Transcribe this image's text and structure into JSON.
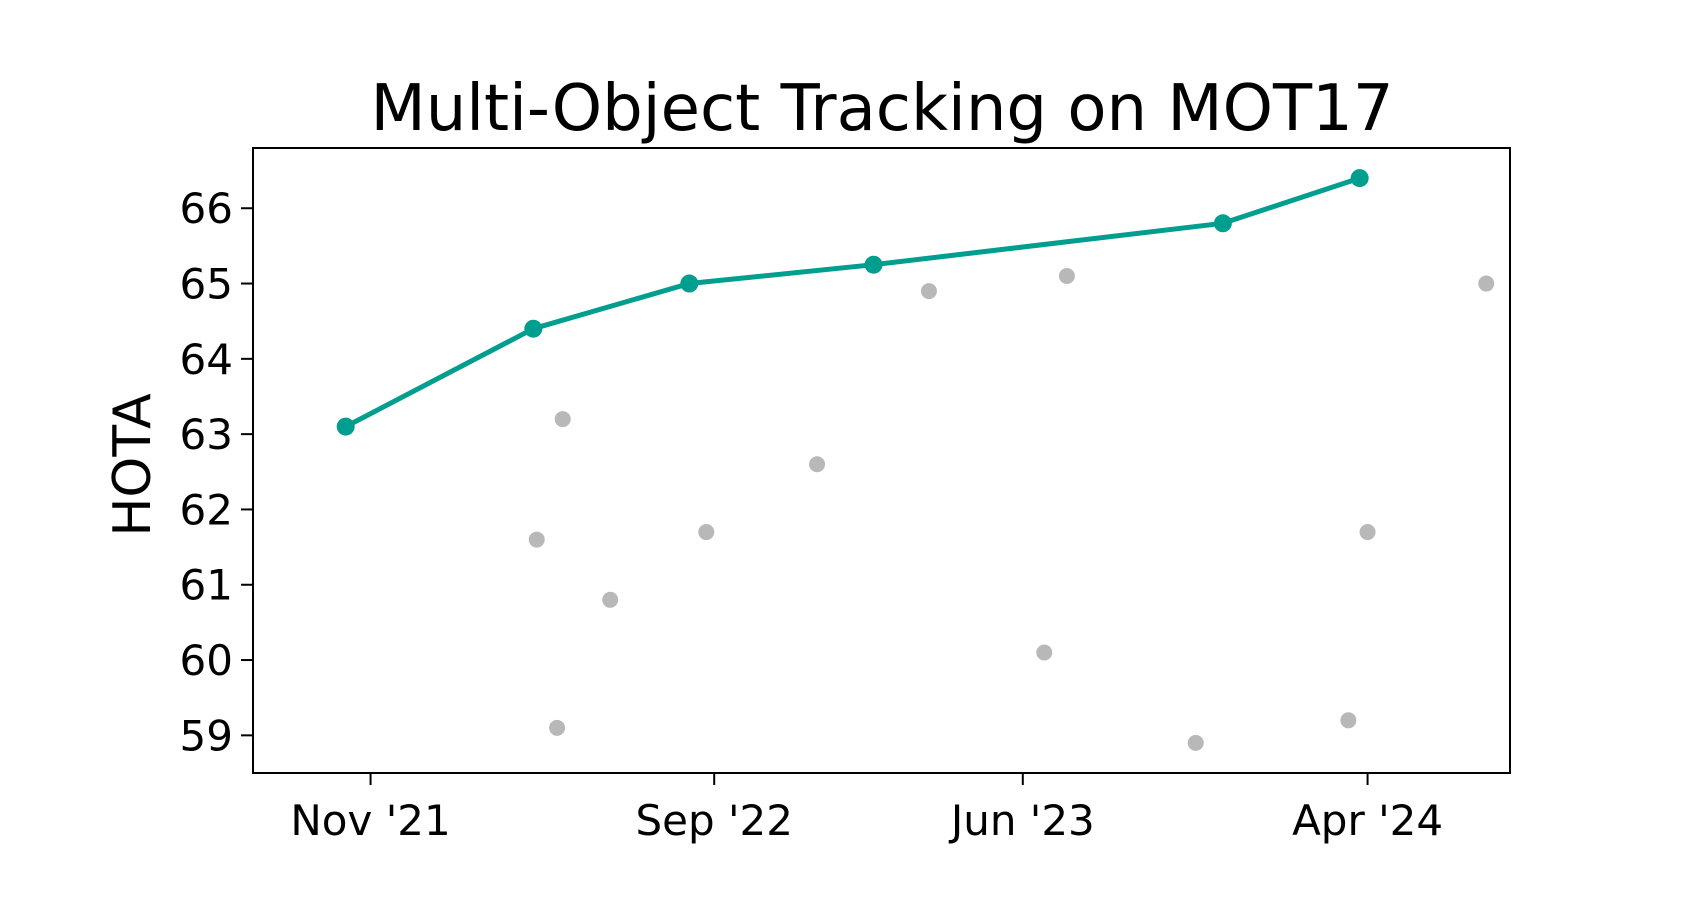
{
  "chart_data": {
    "type": "scatter",
    "title": "Multi-Object Tracking on MOT17",
    "xlabel": "",
    "ylabel": "HOTA",
    "xlim": [
      "2021-07-20",
      "2024-08-05"
    ],
    "ylim": [
      58.5,
      66.8
    ],
    "x_ticks": [
      {
        "date": "2021-11-01",
        "label": "Nov '21"
      },
      {
        "date": "2022-09-01",
        "label": "Sep '22"
      },
      {
        "date": "2023-06-01",
        "label": "Jun '23"
      },
      {
        "date": "2024-04-01",
        "label": "Apr '24"
      }
    ],
    "y_ticks": [
      59,
      60,
      61,
      62,
      63,
      64,
      65,
      66
    ],
    "grid": false,
    "colors": {
      "frontier": "#009e8f",
      "other": "#b8b8b8"
    },
    "series": [
      {
        "role": "frontier",
        "style": "line+markers",
        "points": [
          {
            "x": "2021-10-10",
            "y": 63.1
          },
          {
            "x": "2022-03-25",
            "y": 64.4
          },
          {
            "x": "2022-08-10",
            "y": 65.0
          },
          {
            "x": "2023-01-20",
            "y": 65.25
          },
          {
            "x": "2023-11-25",
            "y": 65.8
          },
          {
            "x": "2024-03-25",
            "y": 66.4
          }
        ]
      },
      {
        "role": "other",
        "style": "markers",
        "points": [
          {
            "x": "2022-03-28",
            "y": 61.6
          },
          {
            "x": "2022-04-15",
            "y": 59.1
          },
          {
            "x": "2022-04-20",
            "y": 63.2
          },
          {
            "x": "2022-06-01",
            "y": 60.8
          },
          {
            "x": "2022-08-25",
            "y": 61.7
          },
          {
            "x": "2022-12-01",
            "y": 62.6
          },
          {
            "x": "2023-03-10",
            "y": 64.9
          },
          {
            "x": "2023-06-20",
            "y": 60.1
          },
          {
            "x": "2023-07-10",
            "y": 65.1
          },
          {
            "x": "2023-11-01",
            "y": 58.9
          },
          {
            "x": "2024-03-15",
            "y": 59.2
          },
          {
            "x": "2024-04-01",
            "y": 61.7
          },
          {
            "x": "2024-07-15",
            "y": 65.0
          }
        ]
      }
    ]
  }
}
